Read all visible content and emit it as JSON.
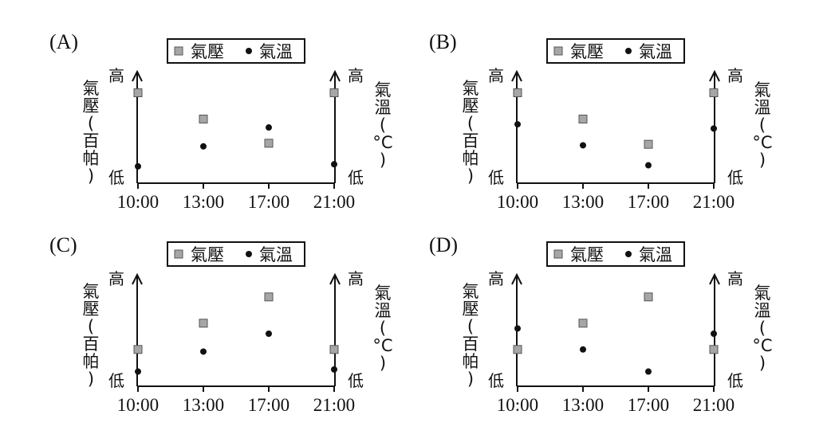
{
  "legend": {
    "pressure": "氣壓",
    "temperature": "氣溫"
  },
  "axis_text": {
    "left_high": "高",
    "left_low": "低",
    "right_high": "高",
    "right_low": "低",
    "left_title_chars": [
      "氣",
      "壓",
      "(",
      "百",
      "帕",
      ")"
    ],
    "right_title_chars": [
      "氣",
      "溫",
      "(",
      "°C",
      ")"
    ]
  },
  "colors": {
    "pressure_marker": "#a6a6a6",
    "temperature_marker": "#111111",
    "ink": "#111111"
  },
  "chart_data": [
    {
      "label": "(A)",
      "type": "scatter",
      "categories": [
        "10:00",
        "13:00",
        "17:00",
        "21:00"
      ],
      "series": [
        {
          "name": "氣壓",
          "marker": "square",
          "values": [
            0.86,
            0.61,
            0.38,
            0.86
          ]
        },
        {
          "name": "氣溫",
          "marker": "circle",
          "values": [
            0.16,
            0.35,
            0.53,
            0.18
          ]
        }
      ],
      "ylim": [
        0,
        1
      ]
    },
    {
      "label": "(B)",
      "type": "scatter",
      "categories": [
        "10:00",
        "13:00",
        "17:00",
        "21:00"
      ],
      "series": [
        {
          "name": "氣壓",
          "marker": "square",
          "values": [
            0.86,
            0.61,
            0.37,
            0.86
          ]
        },
        {
          "name": "氣溫",
          "marker": "circle",
          "values": [
            0.56,
            0.36,
            0.17,
            0.52
          ]
        }
      ],
      "ylim": [
        0,
        1
      ]
    },
    {
      "label": "(C)",
      "type": "scatter",
      "categories": [
        "10:00",
        "13:00",
        "17:00",
        "21:00"
      ],
      "series": [
        {
          "name": "氣壓",
          "marker": "square",
          "values": [
            0.35,
            0.6,
            0.85,
            0.35
          ]
        },
        {
          "name": "氣溫",
          "marker": "circle",
          "values": [
            0.14,
            0.33,
            0.5,
            0.16
          ]
        }
      ],
      "ylim": [
        0,
        1
      ]
    },
    {
      "label": "(D)",
      "type": "scatter",
      "categories": [
        "10:00",
        "13:00",
        "17:00",
        "21:00"
      ],
      "series": [
        {
          "name": "氣壓",
          "marker": "square",
          "values": [
            0.35,
            0.6,
            0.85,
            0.35
          ]
        },
        {
          "name": "氣溫",
          "marker": "circle",
          "values": [
            0.55,
            0.35,
            0.14,
            0.5
          ]
        }
      ],
      "ylim": [
        0,
        1
      ]
    }
  ]
}
